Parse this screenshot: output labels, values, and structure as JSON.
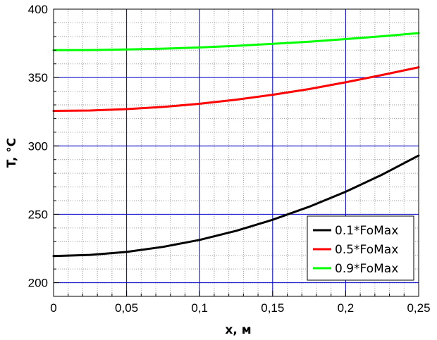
{
  "chart_data": {
    "type": "line",
    "xlabel": "x, м",
    "ylabel": "T, °C",
    "xlim": [
      0,
      0.25
    ],
    "ylim": [
      190,
      400
    ],
    "x_ticks": [
      0,
      0.05,
      0.1,
      0.15,
      0.2,
      0.25
    ],
    "x_tick_labels": [
      "0",
      "0,05",
      "0,1",
      "0,15",
      "0,2",
      "0,25"
    ],
    "y_ticks": [
      200,
      250,
      300,
      350,
      400
    ],
    "y_tick_labels": [
      "200",
      "250",
      "300",
      "350",
      "400"
    ],
    "grid": true,
    "legend_position": "bottom-right",
    "x": [
      0,
      0.025,
      0.05,
      0.075,
      0.1,
      0.125,
      0.15,
      0.175,
      0.2,
      0.225,
      0.25
    ],
    "series": [
      {
        "name": "0.1*FoMax",
        "color": "#000000",
        "values": [
          219.5,
          220.3,
          222.5,
          226.2,
          231.3,
          237.9,
          246.0,
          255.5,
          266.5,
          279.0,
          293.0
        ]
      },
      {
        "name": "0.5*FoMax",
        "color": "#ff0000",
        "values": [
          325.6,
          325.9,
          326.9,
          328.5,
          330.8,
          333.8,
          337.4,
          341.6,
          346.5,
          351.9,
          357.5
        ]
      },
      {
        "name": "0.9*FoMax",
        "color": "#00ff00",
        "values": [
          370.0,
          370.1,
          370.5,
          371.1,
          372.0,
          373.2,
          374.6,
          376.2,
          378.1,
          380.2,
          382.5
        ]
      }
    ]
  },
  "colors": {
    "grid_major": "#0000cc",
    "grid_minor": "#9e9e9e",
    "axis": "#000000"
  }
}
